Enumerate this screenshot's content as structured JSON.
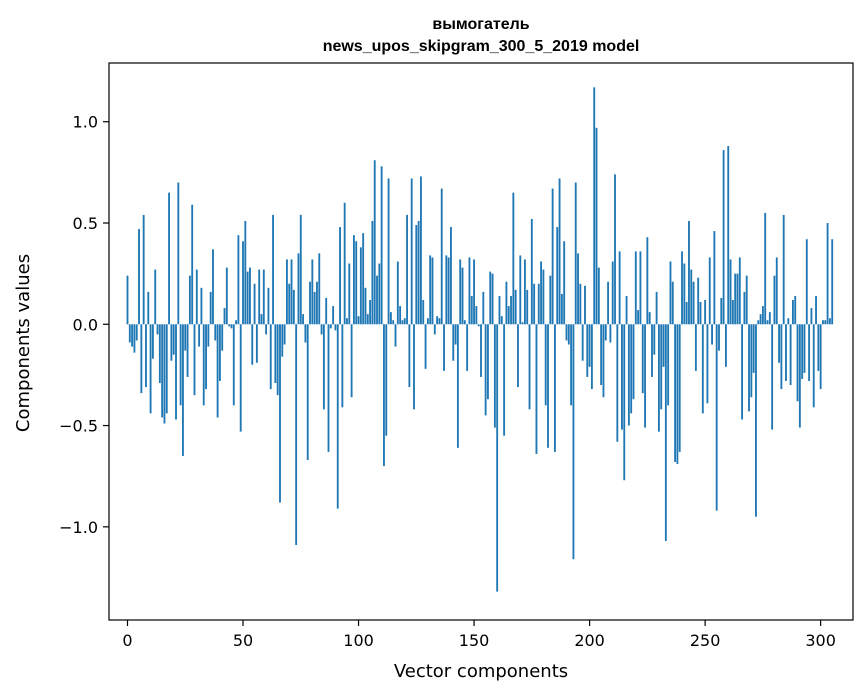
{
  "chart_data": {
    "type": "bar",
    "title": "вымогатель",
    "subtitle": "news_upos_skipgram_300_5_2019 model",
    "xlabel": "Vector components",
    "ylabel": "Components values",
    "xlim": [
      -8,
      314
    ],
    "ylim": [
      -1.46,
      1.29
    ],
    "xticks": [
      0,
      50,
      100,
      150,
      200,
      250,
      300
    ],
    "yticks": [
      -1.0,
      -0.5,
      0.0,
      0.5,
      1.0
    ],
    "ytick_labels": [
      "−1.0",
      "−0.5",
      "0.0",
      "0.5",
      "1.0"
    ],
    "grid": false,
    "bar_color": "#1f77b4",
    "values": [
      0.24,
      -0.09,
      -0.11,
      -0.14,
      -0.08,
      0.47,
      -0.34,
      0.54,
      -0.31,
      0.16,
      -0.44,
      -0.17,
      0.27,
      -0.05,
      -0.29,
      -0.46,
      -0.49,
      -0.44,
      0.65,
      -0.18,
      -0.15,
      -0.47,
      0.7,
      -0.4,
      -0.65,
      -0.13,
      -0.26,
      0.24,
      0.59,
      -0.35,
      0.27,
      -0.11,
      0.18,
      -0.4,
      -0.32,
      -0.11,
      0.16,
      0.37,
      -0.08,
      -0.46,
      -0.28,
      -0.13,
      0.08,
      0.28,
      -0.01,
      -0.02,
      -0.4,
      0.02,
      0.44,
      -0.53,
      0.41,
      0.51,
      0.26,
      0.28,
      -0.2,
      0.2,
      -0.19,
      0.27,
      0.05,
      0.27,
      -0.05,
      0.18,
      -0.32,
      0.54,
      -0.29,
      -0.35,
      -0.88,
      -0.16,
      -0.1,
      0.32,
      0.2,
      0.32,
      0.17,
      -1.09,
      0.35,
      0.54,
      0.05,
      -0.09,
      -0.67,
      0.21,
      0.32,
      0.16,
      0.21,
      0.35,
      -0.05,
      -0.42,
      0.13,
      -0.63,
      -0.02,
      0.09,
      -0.03,
      -0.91,
      0.48,
      -0.41,
      0.6,
      0.03,
      0.3,
      -0.36,
      0.44,
      0.41,
      0.04,
      0.38,
      0.45,
      0.18,
      0.05,
      0.12,
      0.51,
      0.81,
      0.24,
      0.3,
      0.78,
      -0.7,
      -0.55,
      0.72,
      0.06,
      0.02,
      -0.11,
      0.31,
      0.09,
      0.02,
      0.03,
      0.54,
      -0.31,
      0.72,
      -0.42,
      0.49,
      0.51,
      0.73,
      0.12,
      -0.22,
      0.03,
      0.34,
      0.33,
      -0.05,
      0.04,
      0.03,
      0.67,
      -0.23,
      0.34,
      0.33,
      0.48,
      -0.18,
      -0.1,
      -0.61,
      0.32,
      0.28,
      0.02,
      -0.23,
      0.33,
      0.14,
      0.32,
      0.09,
      -0.01,
      -0.26,
      0.16,
      -0.45,
      -0.37,
      0.26,
      0.25,
      -0.51,
      -1.32,
      0.14,
      0.04,
      -0.55,
      0.21,
      0.09,
      0.14,
      0.65,
      0.17,
      -0.31,
      0.34,
      0.01,
      0.32,
      0.17,
      -0.42,
      0.52,
      0.2,
      -0.64,
      0.2,
      0.31,
      0.27,
      -0.4,
      -0.61,
      0.24,
      0.67,
      -0.63,
      0.48,
      0.72,
      0.15,
      0.41,
      -0.08,
      -0.1,
      -0.4,
      -1.16,
      0.7,
      0.35,
      0.2,
      -0.18,
      0.19,
      -0.26,
      -0.21,
      -0.32,
      1.17,
      0.97,
      0.28,
      -0.3,
      -0.36,
      -0.08,
      0.21,
      -0.09,
      0.31,
      0.74,
      -0.58,
      0.36,
      -0.52,
      -0.77,
      0.14,
      -0.5,
      -0.44,
      -0.37,
      0.36,
      0.07,
      0.36,
      -0.34,
      -0.51,
      0.43,
      0.06,
      -0.26,
      -0.15,
      0.16,
      -0.53,
      -0.42,
      -0.21,
      -1.07,
      -0.4,
      0.31,
      0.21,
      -0.68,
      -0.69,
      -0.63,
      0.36,
      0.3,
      0.11,
      0.51,
      0.27,
      0.21,
      -0.23,
      0.23,
      0.11,
      -0.44,
      0.12,
      -0.39,
      0.33,
      -0.1,
      0.46,
      -0.92,
      -0.13,
      0.13,
      0.86,
      -0.21,
      0.88,
      0.32,
      0.12,
      0.25,
      0.25,
      0.33,
      -0.47,
      0.16,
      0.24,
      -0.43,
      -0.36,
      -0.24,
      -0.95,
      0.02,
      0.05,
      0.09,
      0.55,
      0.02,
      0.06,
      -0.52,
      0.24,
      0.33,
      -0.19,
      -0.32,
      0.54,
      -0.28,
      0.03,
      -0.3,
      0.12,
      0.14,
      -0.38,
      -0.51,
      -0.27,
      -0.24,
      0.42,
      -0.28,
      0.08,
      -0.41,
      0.14,
      -0.23,
      -0.32,
      0.02,
      0.02,
      0.5,
      0.03,
      0.42
    ]
  }
}
